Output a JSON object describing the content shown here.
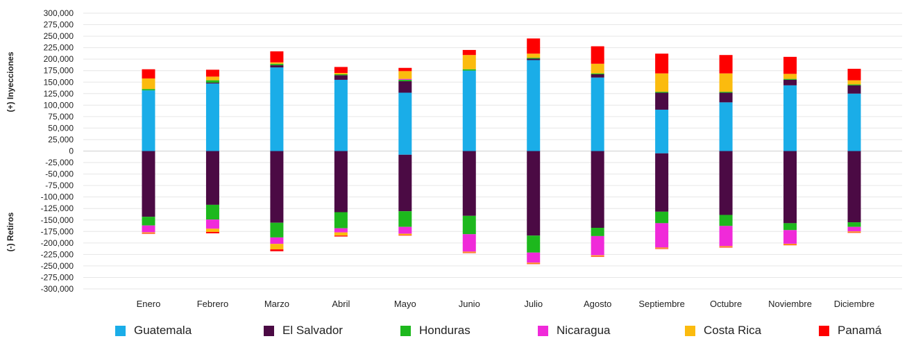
{
  "chart_data": {
    "type": "bar",
    "stacked": true,
    "categories": [
      "Enero",
      "Febrero",
      "Marzo",
      "Abril",
      "Mayo",
      "Junio",
      "Julio",
      "Agosto",
      "Septiembre",
      "Octubre",
      "Noviembre",
      "Diciembre"
    ],
    "ylabel_positive": "(+) Inyecciones",
    "ylabel_negative": "(-) Retiros",
    "ylim": [
      -300000,
      300000
    ],
    "yticks": [
      300000,
      275000,
      250000,
      225000,
      200000,
      175000,
      150000,
      125000,
      100000,
      75000,
      50000,
      25000,
      0,
      -25000,
      -50000,
      -75000,
      -100000,
      -125000,
      -150000,
      -175000,
      -200000,
      -225000,
      -250000,
      -275000,
      -300000
    ],
    "ytick_labels": [
      "300,000",
      "275,000",
      "250,000",
      "225,000",
      "200,000",
      "175,000",
      "150,000",
      "125,000",
      "100,000",
      "75,000",
      "50,000",
      "25,000",
      "0",
      "-25,000",
      "-50,000",
      "-75,000",
      "-100,000",
      "-125,000",
      "-150,000",
      "-175,000",
      "-200,000",
      "-225,000",
      "-250,000",
      "-275,000",
      "-300,000"
    ],
    "grid": true,
    "legend_position": "bottom",
    "series": [
      {
        "name": "Guatemala",
        "color": "#1AADE8",
        "injections": [
          132000,
          147000,
          182000,
          155000,
          127000,
          175000,
          198000,
          160000,
          90000,
          106000,
          143000,
          125000
        ],
        "withdrawals": [
          0,
          0,
          0,
          0,
          -8000,
          0,
          0,
          0,
          -5000,
          0,
          0,
          0
        ]
      },
      {
        "name": "El Salvador",
        "color": "#4B0A44",
        "injections": [
          0,
          2000,
          5000,
          10000,
          25000,
          0,
          3000,
          7000,
          37000,
          21000,
          12000,
          18000
        ],
        "withdrawals": [
          -143000,
          -117000,
          -156000,
          -133000,
          -123000,
          -141000,
          -184000,
          -167000,
          -127000,
          -139000,
          -157000,
          -155000
        ]
      },
      {
        "name": "Honduras",
        "color": "#1DB81D",
        "injections": [
          3000,
          5000,
          3000,
          2000,
          3000,
          3000,
          2000,
          2000,
          2000,
          2000,
          2000,
          2000
        ],
        "withdrawals": [
          -19000,
          -32000,
          -32000,
          -35000,
          -34000,
          -40000,
          -37000,
          -18000,
          -25000,
          -24000,
          -15000,
          -10000
        ]
      },
      {
        "name": "Nicaragua",
        "color": "#F02AD9",
        "injections": [
          0,
          0,
          0,
          0,
          2000,
          0,
          0,
          0,
          0,
          0,
          0,
          0
        ],
        "withdrawals": [
          -15000,
          -20000,
          -14000,
          -9000,
          -15000,
          -38000,
          -22000,
          -42000,
          -53000,
          -44000,
          -30000,
          -10000
        ]
      },
      {
        "name": "Costa Rica",
        "color": "#FBBB0E",
        "injections": [
          23000,
          8000,
          3000,
          3000,
          17000,
          31000,
          9000,
          21000,
          40000,
          40000,
          11000,
          9000
        ],
        "withdrawals": [
          -2000,
          -7000,
          -12000,
          -7000,
          -3000,
          -2000,
          -2000,
          -2000,
          -2000,
          -2000,
          -2000,
          -2000
        ]
      },
      {
        "name": "Panamá",
        "color": "#FE0000",
        "injections": [
          20000,
          15000,
          24000,
          13000,
          7000,
          11000,
          33000,
          38000,
          43000,
          40000,
          37000,
          25000
        ],
        "withdrawals": [
          -1000,
          -3000,
          -4000,
          -2000,
          -1000,
          -1000,
          -1000,
          -1000,
          -1000,
          -1000,
          -1000,
          -1000
        ]
      }
    ]
  }
}
